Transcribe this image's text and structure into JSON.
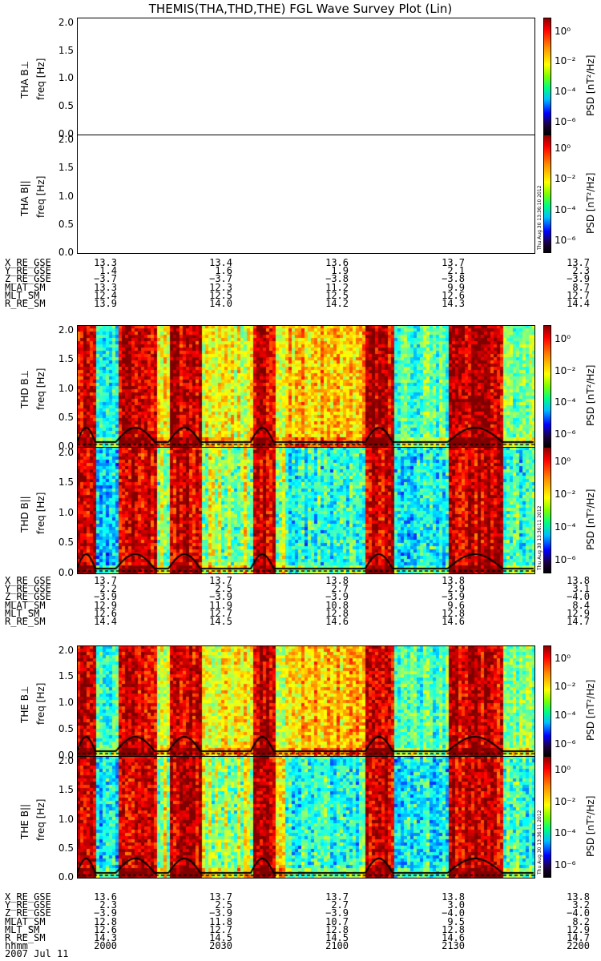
{
  "title": "THEMIS(THA,THD,THE) FGL Wave Survey Plot (Lin)",
  "chart_data": [
    {
      "type": "heatmap",
      "probe": "tha",
      "panel_label": "THA B⊥",
      "ylabel": "freq [Hz]",
      "ylim": [
        0,
        2.1
      ],
      "yticks": [
        "0.0",
        "0.5",
        "1.0",
        "1.5",
        "2.0"
      ],
      "cbar_label": "PSD [nT²/Hz]",
      "cbar_ticks": [
        "10⁰",
        "10⁻²",
        "10⁻⁴",
        "10⁻⁶"
      ],
      "has_data": false,
      "stamp": ""
    },
    {
      "type": "heatmap",
      "probe": "tha",
      "panel_label": "THA B||",
      "ylabel": "freq [Hz]",
      "ylim": [
        0,
        2.1
      ],
      "yticks": [
        "0.0",
        "0.5",
        "1.0",
        "1.5",
        "2.0"
      ],
      "cbar_label": "PSD [nT²/Hz]",
      "cbar_ticks": [
        "10⁰",
        "10⁻²",
        "10⁻⁴",
        "10⁻⁶"
      ],
      "has_data": false,
      "stamp": "Thu Aug 30 13:36:10 2012"
    },
    {
      "type": "heatmap",
      "probe": "thd",
      "panel_label": "THD B⊥",
      "ylabel": "freq [Hz]",
      "ylim": [
        0,
        2.1
      ],
      "yticks": [
        "0.0",
        "0.5",
        "1.0",
        "1.5",
        "2.0"
      ],
      "cbar_label": "PSD [nT²/Hz]",
      "cbar_ticks": [
        "10⁰",
        "10⁻²",
        "10⁻⁴",
        "10⁻⁶"
      ],
      "has_data": true,
      "variant": "perp",
      "stamp": ""
    },
    {
      "type": "heatmap",
      "probe": "thd",
      "panel_label": "THD B||",
      "ylabel": "freq [Hz]",
      "ylim": [
        0,
        2.1
      ],
      "yticks": [
        "0.0",
        "0.5",
        "1.0",
        "1.5",
        "2.0"
      ],
      "cbar_label": "PSD [nT²/Hz]",
      "cbar_ticks": [
        "10⁰",
        "10⁻²",
        "10⁻⁴",
        "10⁻⁶"
      ],
      "has_data": true,
      "variant": "par",
      "stamp": "Thu Aug 30 13:36:11 2012"
    },
    {
      "type": "heatmap",
      "probe": "the",
      "panel_label": "THE B⊥",
      "ylabel": "freq [Hz]",
      "ylim": [
        0,
        2.1
      ],
      "yticks": [
        "0.0",
        "0.5",
        "1.0",
        "1.5",
        "2.0"
      ],
      "cbar_label": "PSD [nT²/Hz]",
      "cbar_ticks": [
        "10⁰",
        "10⁻²",
        "10⁻⁴",
        "10⁻⁶"
      ],
      "has_data": true,
      "variant": "perp",
      "stamp": ""
    },
    {
      "type": "heatmap",
      "probe": "the",
      "panel_label": "THE B||",
      "ylabel": "freq [Hz]",
      "ylim": [
        0,
        2.1
      ],
      "yticks": [
        "0.0",
        "0.5",
        "1.0",
        "1.5",
        "2.0"
      ],
      "cbar_label": "PSD [nT²/Hz]",
      "cbar_ticks": [
        "10⁰",
        "10⁻²",
        "10⁻⁴",
        "10⁻⁶"
      ],
      "has_data": true,
      "variant": "par",
      "stamp": "Thu Aug 30 13:36:11 2012"
    }
  ],
  "ephemeris": [
    {
      "labels": [
        "X_RE_GSE",
        "Y_RE_GSE",
        "Z_RE_GSE",
        "MLAT_SM",
        "MLT_SM",
        "R_RE_SM"
      ],
      "columns": [
        [
          "13.3",
          "1.4",
          "−3.7",
          "13.3",
          "12.4",
          "13.9"
        ],
        [
          "13.4",
          "1.6",
          "−3.7",
          "12.3",
          "12.5",
          "14.0"
        ],
        [
          "13.6",
          "1.9",
          "−3.8",
          "11.2",
          "12.5",
          "14.2"
        ],
        [
          "13.7",
          "2.1",
          "−3.8",
          "9.9",
          "12.6",
          "14.3"
        ],
        [
          "13.7",
          "2.3",
          "−3.9",
          "8.7",
          "12.7",
          "14.4"
        ]
      ]
    },
    {
      "labels": [
        "X_RE_GSE",
        "Y_RE_GSE",
        "Z_RE_GSE",
        "MLAT_SM",
        "MLT_SM",
        "R_RE_SM"
      ],
      "columns": [
        [
          "13.7",
          "2.2",
          "−3.9",
          "12.9",
          "12.6",
          "14.4"
        ],
        [
          "13.7",
          "2.5",
          "−3.9",
          "11.9",
          "12.7",
          "14.5"
        ],
        [
          "13.8",
          "2.7",
          "−3.9",
          "10.8",
          "12.8",
          "14.6"
        ],
        [
          "13.8",
          "2.9",
          "−3.9",
          "9.6",
          "12.8",
          "14.6"
        ],
        [
          "13.8",
          "3.1",
          "−4.0",
          "8.4",
          "12.9",
          "14.7"
        ]
      ]
    },
    {
      "labels": [
        "X_RE_GSE",
        "Y_RE_GSE",
        "Z_RE_GSE",
        "MLAT_SM",
        "MLT_SM",
        "R_RE_SM",
        "hhmm",
        "2007 Jul 11"
      ],
      "columns": [
        [
          "13.6",
          "2.3",
          "−3.9",
          "12.8",
          "12.6",
          "14.3",
          "2000"
        ],
        [
          "13.7",
          "2.5",
          "−3.9",
          "11.8",
          "12.7",
          "14.5",
          "2030"
        ],
        [
          "13.7",
          "2.7",
          "−3.9",
          "10.7",
          "12.8",
          "14.5",
          "2100"
        ],
        [
          "13.8",
          "3.0",
          "−4.0",
          "9.5",
          "12.8",
          "14.6",
          "2130"
        ],
        [
          "13.8",
          "3.2",
          "−4.0",
          "8.2",
          "12.9",
          "14.7",
          "2200"
        ]
      ]
    }
  ]
}
